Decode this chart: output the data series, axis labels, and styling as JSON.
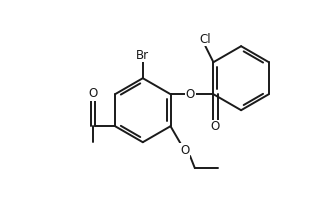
{
  "bg_color": "#ffffff",
  "bond_color": "#1a1a1a",
  "bond_lw": 1.4,
  "font_size": 8.5,
  "figsize": [
    3.24,
    2.14
  ],
  "dpi": 100,
  "xlim": [
    -3.6,
    4.8
  ],
  "ylim": [
    -3.2,
    3.4
  ]
}
